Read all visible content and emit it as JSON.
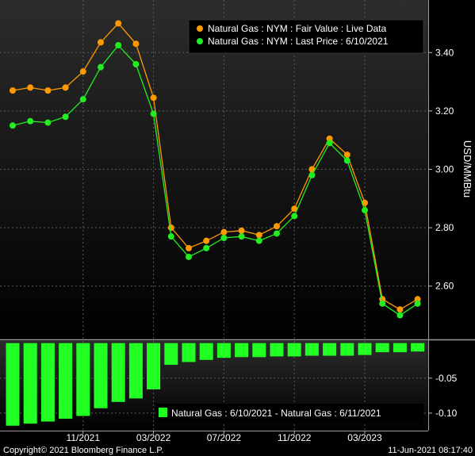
{
  "chart_data": [
    {
      "type": "line",
      "ylabel": "USD/MMBtu",
      "ylim": [
        2.42,
        3.58
      ],
      "yticks": [
        2.6,
        2.8,
        3.0,
        3.2,
        3.4
      ],
      "ytick_labels": [
        "2.60",
        "2.80",
        "3.00",
        "3.20",
        "3.40"
      ],
      "x": [
        "07/2021",
        "08/2021",
        "09/2021",
        "10/2021",
        "11/2021",
        "12/2021",
        "01/2022",
        "02/2022",
        "03/2022",
        "04/2022",
        "05/2022",
        "06/2022",
        "07/2022",
        "08/2022",
        "09/2022",
        "10/2022",
        "11/2022",
        "12/2022",
        "01/2023",
        "02/2023",
        "03/2023",
        "04/2023",
        "05/2023",
        "06/2023"
      ],
      "xtick_labels": [
        "11/2021",
        "03/2022",
        "07/2022",
        "11/2022",
        "03/2023"
      ],
      "xtick_positions": [
        "11/2021",
        "03/2022",
        "07/2022",
        "11/2022",
        "03/2023"
      ],
      "legend_position": "top-right",
      "grid": true,
      "series": [
        {
          "name": "Natural Gas : NYM : Fair Value : Live Data",
          "color": "#ff9900",
          "values": [
            3.27,
            3.28,
            3.27,
            3.28,
            3.335,
            3.435,
            3.5,
            3.43,
            3.245,
            2.8,
            2.73,
            2.755,
            2.785,
            2.79,
            2.775,
            2.805,
            2.865,
            3.0,
            3.105,
            3.05,
            2.885,
            2.555,
            2.52,
            2.555
          ]
        },
        {
          "name": "Natural Gas : NYM : Last Price : 6/10/2021",
          "color": "#22ee22",
          "values": [
            3.15,
            3.165,
            3.16,
            3.18,
            3.24,
            3.35,
            3.425,
            3.36,
            3.19,
            2.77,
            2.7,
            2.73,
            2.765,
            2.77,
            2.755,
            2.78,
            2.84,
            2.98,
            3.09,
            3.03,
            2.86,
            2.54,
            2.5,
            2.54
          ]
        }
      ]
    },
    {
      "type": "bar",
      "ylim": [
        -0.125,
        0.003
      ],
      "yticks": [
        -0.05,
        -0.1
      ],
      "ytick_labels": [
        "-0.05",
        "-0.10"
      ],
      "categories": [
        "07/2021",
        "08/2021",
        "09/2021",
        "10/2021",
        "11/2021",
        "12/2021",
        "01/2022",
        "02/2022",
        "03/2022",
        "04/2022",
        "05/2022",
        "06/2022",
        "07/2022",
        "08/2022",
        "09/2022",
        "10/2022",
        "11/2022",
        "12/2022",
        "01/2023",
        "02/2023",
        "03/2023",
        "04/2023",
        "05/2023",
        "06/2023"
      ],
      "legend_position": "bottom-right",
      "series": [
        {
          "name": "Natural Gas : 6/10/2021 - Natural Gas : 6/11/2021",
          "color": "#22ff22",
          "values": [
            -0.118,
            -0.115,
            -0.112,
            -0.108,
            -0.104,
            -0.093,
            -0.084,
            -0.079,
            -0.066,
            -0.031,
            -0.027,
            -0.024,
            -0.021,
            -0.02,
            -0.02,
            -0.019,
            -0.019,
            -0.018,
            -0.018,
            -0.018,
            -0.017,
            -0.013,
            -0.013,
            -0.012
          ]
        }
      ]
    }
  ],
  "footer": {
    "copyright": "Copyright© 2021 Bloomberg Finance L.P.",
    "timestamp": "11-Jun-2021 08:17:40"
  }
}
